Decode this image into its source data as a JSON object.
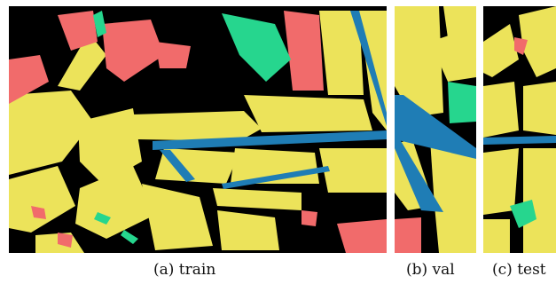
{
  "colors": {
    "background": "#000000",
    "land": "#ECE35A",
    "building": "#F16B6B",
    "vegetation": "#26D68E",
    "water": "#1F7DB5",
    "gap": "#ffffff"
  },
  "panels": [
    {
      "id": "train",
      "caption": "(a) train"
    },
    {
      "id": "val",
      "caption": "(b) val"
    },
    {
      "id": "test",
      "caption": "(c) test"
    }
  ]
}
